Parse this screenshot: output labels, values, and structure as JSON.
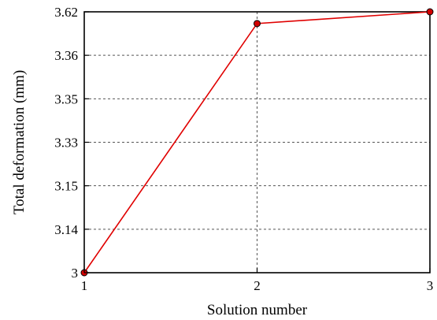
{
  "chart_data": {
    "type": "line",
    "title": "",
    "xlabel": "Solution number",
    "ylabel": "Total deformation (mm)",
    "x_ticks": [
      "1",
      "2",
      "3"
    ],
    "y_ticks": [
      "3",
      "3.14",
      "3.15",
      "3.33",
      "3.35",
      "3.36",
      "3.62"
    ],
    "grid": true,
    "x": [
      1,
      2,
      3
    ],
    "series": [
      {
        "values": [
          3,
          3.55,
          3.62
        ],
        "color": "#e00000",
        "marker_color": "#d40000"
      }
    ]
  }
}
